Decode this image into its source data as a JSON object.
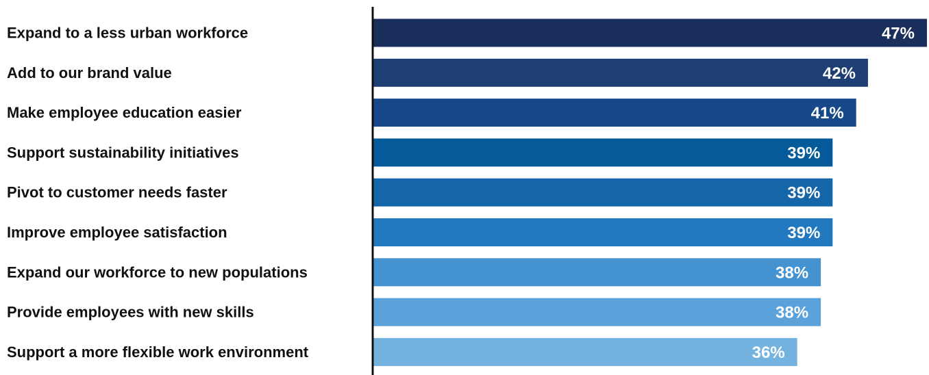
{
  "chart_data": {
    "type": "bar",
    "orientation": "horizontal",
    "categories": [
      "Expand to a less urban workforce",
      "Add to our brand value",
      "Make employee education easier",
      "Support sustainability initiatives",
      "Pivot to customer needs faster",
      "Improve employee satisfaction",
      "Expand our workforce to new populations",
      "Provide employees with new skills",
      "Support a more flexible work environment"
    ],
    "values": [
      47,
      42,
      41,
      39,
      39,
      39,
      38,
      38,
      36
    ],
    "value_labels": [
      "47%",
      "42%",
      "41%",
      "39%",
      "39%",
      "39%",
      "38%",
      "38%",
      "36%"
    ],
    "bar_colors": [
      "#1b2f5c",
      "#1d3f73",
      "#17498a",
      "#055a99",
      "#1565a9",
      "#2279bf",
      "#4493d0",
      "#5aa2d9",
      "#74b3e0"
    ],
    "axis_color": "#111111",
    "grid": false,
    "legend": false
  }
}
